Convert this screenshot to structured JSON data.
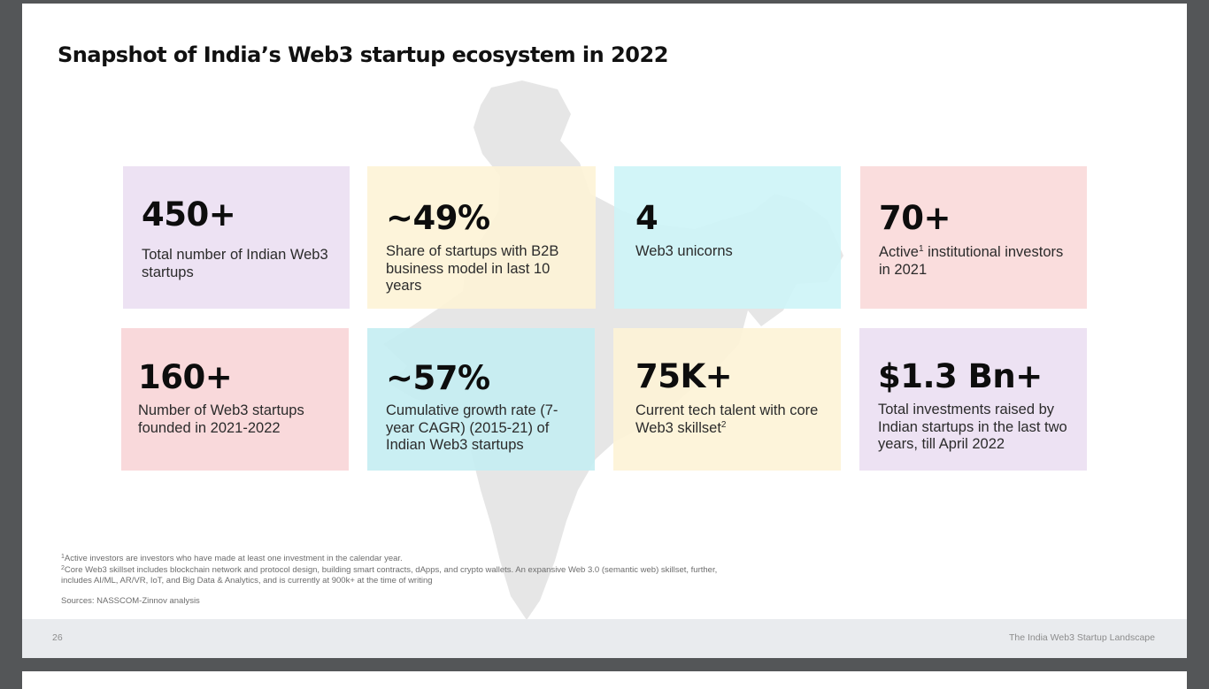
{
  "title": "Snapshot of India’s Web3 startup ecosystem in 2022",
  "stats": [
    {
      "value": "450+",
      "desc": "Total number of Indian Web3 startups"
    },
    {
      "value": "~49%",
      "desc": "Share of startups with B2B business model in last 10 years"
    },
    {
      "value": "4",
      "desc": "Web3 unicorns"
    },
    {
      "value": "70+",
      "desc_pre": "Active",
      "desc_sup": "1",
      "desc_post": " institutional investors in 2021"
    },
    {
      "value": "160+",
      "desc": "Number of Web3 startups founded in 2021-2022"
    },
    {
      "value": "~57%",
      "desc": "Cumulative growth rate (7-year CAGR) (2015-21) of Indian Web3 startups"
    },
    {
      "value": "75K+",
      "desc_pre": "Current tech talent with core Web3 skillset",
      "desc_sup": "2"
    },
    {
      "value": "$1.3 Bn+",
      "desc": "Total investments raised by Indian startups in the last two years, till April 2022"
    }
  ],
  "footnotes": {
    "note1_marker": "1",
    "note1": "Active investors are investors who have made at least one investment in the calendar year.",
    "note2_marker": "2",
    "note2": "Core Web3 skillset includes blockchain network and protocol design, building smart contracts, dApps, and crypto wallets. An expansive Web 3.0 (semantic web) skillset, further, includes AI/ML, AR/VR, IoT, and Big Data & Analytics, and is currently at 900k+ at the time of writing",
    "sources": "Sources: NASSCOM-Zinnov analysis"
  },
  "footer": {
    "page_number": "26",
    "report_name": "The India Web3 Startup Landscape"
  },
  "colors": {
    "lavender": "#ECE0F2",
    "yellow": "#FDF3D6",
    "cyan": "#CEF4F7",
    "pink": "#FADADA",
    "map_gray": "#E6E6E6"
  }
}
